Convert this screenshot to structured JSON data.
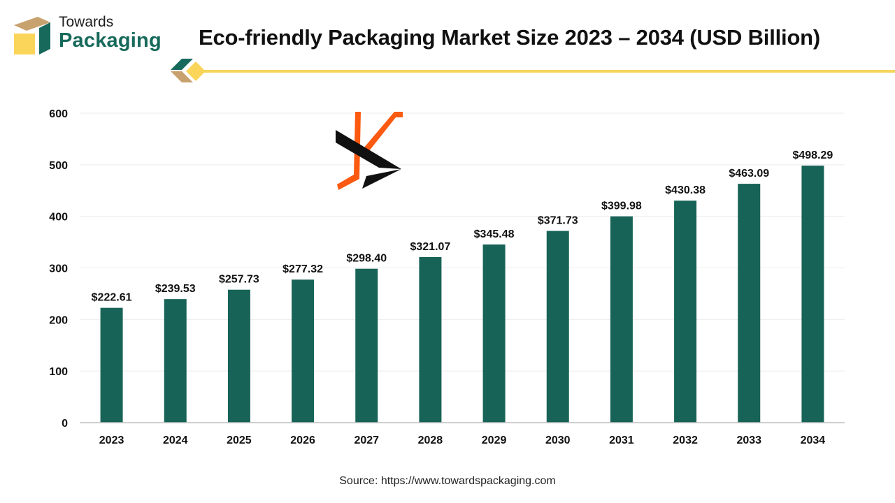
{
  "brand": {
    "line1": "Towards",
    "line2": "Packaging",
    "colors": {
      "green": "#176a5b",
      "tan": "#c8a26e",
      "yellow": "#fbd55a",
      "accent_orange": "#fb5a10"
    }
  },
  "watermark": {
    "icon": "arrow-mark-icon"
  },
  "source": "Source: https://www.towardspackaging.com",
  "chart_data": {
    "type": "bar",
    "title": "Eco-friendly Packaging Market Size 2023 – 2034 (USD Billion)",
    "categories": [
      "2023",
      "2024",
      "2025",
      "2026",
      "2027",
      "2028",
      "2029",
      "2030",
      "2031",
      "2032",
      "2033",
      "2034"
    ],
    "values": [
      222.61,
      239.53,
      257.73,
      277.32,
      298.4,
      321.07,
      345.48,
      371.73,
      399.98,
      430.38,
      463.09,
      498.29
    ],
    "data_labels": [
      "$222.61",
      "$239.53",
      "$257.73",
      "$277.32",
      "$298.40",
      "$321.07",
      "$345.48",
      "$371.73",
      "$399.98",
      "$430.38",
      "$463.09",
      "$498.29"
    ],
    "yticks": [
      0,
      100,
      200,
      300,
      400,
      500,
      600
    ],
    "ylim": [
      0,
      600
    ],
    "bar_color": "#176357",
    "grid": true,
    "legend": "none"
  }
}
